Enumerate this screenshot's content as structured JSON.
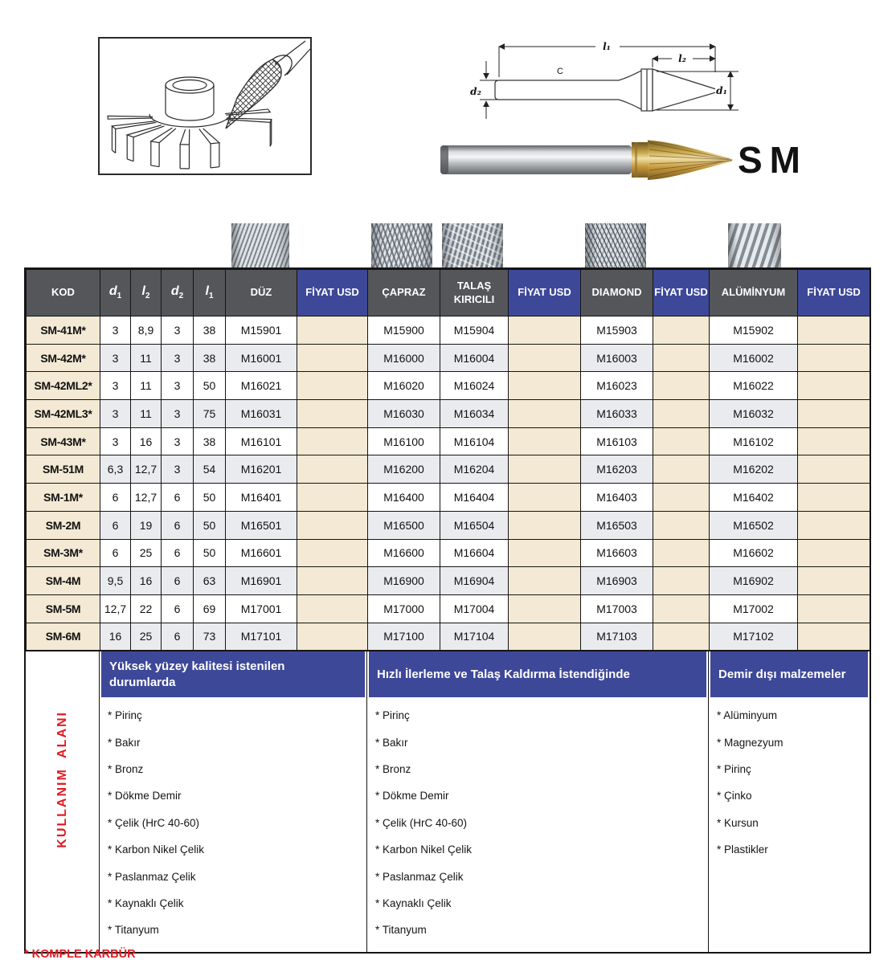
{
  "page": {
    "product_code_label": "SM",
    "footnote": "* KOMPLE KARBÜR",
    "colors": {
      "header_gray": "#54565a",
      "accent_blue": "#3e4899",
      "beige": "#f3e9d4",
      "alt_row_gray": "#e9ebee",
      "red": "#e01b24"
    }
  },
  "diagram": {
    "l1": "l₁",
    "l2": "l₂",
    "d1": "d₁",
    "d2": "d₂",
    "c": "C"
  },
  "table": {
    "headers": [
      {
        "label": "KOD"
      },
      {
        "label": "d",
        "sub": "1"
      },
      {
        "label": "l",
        "sub": "2"
      },
      {
        "label": "d",
        "sub": "2"
      },
      {
        "label": "l",
        "sub": "1"
      },
      {
        "label": "DÜZ"
      },
      {
        "label": "FİYAT USD",
        "price": true
      },
      {
        "label": "ÇAPRAZ"
      },
      {
        "label": "TALAŞ KIRICILI"
      },
      {
        "label": "FİYAT USD",
        "price": true
      },
      {
        "label": "DIAMOND"
      },
      {
        "label": "FİYAT USD",
        "price": true
      },
      {
        "label": "ALÜMİNYUM"
      },
      {
        "label": "FİYAT USD",
        "price": true
      }
    ],
    "rows": [
      {
        "kod": "SM-41M*",
        "d1": "3",
        "l2": "8,9",
        "d2": "3",
        "l1": "38",
        "duz": "M15901",
        "fiyat1": "",
        "capraz": "M15900",
        "talas": "M15904",
        "fiyat2": "",
        "diamond": "M15903",
        "fiyat3": "",
        "aluminyum": "M15902",
        "fiyat4": ""
      },
      {
        "kod": "SM-42M*",
        "d1": "3",
        "l2": "11",
        "d2": "3",
        "l1": "38",
        "duz": "M16001",
        "fiyat1": "",
        "capraz": "M16000",
        "talas": "M16004",
        "fiyat2": "",
        "diamond": "M16003",
        "fiyat3": "",
        "aluminyum": "M16002",
        "fiyat4": ""
      },
      {
        "kod": "SM-42ML2*",
        "d1": "3",
        "l2": "11",
        "d2": "3",
        "l1": "50",
        "duz": "M16021",
        "fiyat1": "",
        "capraz": "M16020",
        "talas": "M16024",
        "fiyat2": "",
        "diamond": "M16023",
        "fiyat3": "",
        "aluminyum": "M16022",
        "fiyat4": ""
      },
      {
        "kod": "SM-42ML3*",
        "d1": "3",
        "l2": "11",
        "d2": "3",
        "l1": "75",
        "duz": "M16031",
        "fiyat1": "",
        "capraz": "M16030",
        "talas": "M16034",
        "fiyat2": "",
        "diamond": "M16033",
        "fiyat3": "",
        "aluminyum": "M16032",
        "fiyat4": ""
      },
      {
        "kod": "SM-43M*",
        "d1": "3",
        "l2": "16",
        "d2": "3",
        "l1": "38",
        "duz": "M16101",
        "fiyat1": "",
        "capraz": "M16100",
        "talas": "M16104",
        "fiyat2": "",
        "diamond": "M16103",
        "fiyat3": "",
        "aluminyum": "M16102",
        "fiyat4": ""
      },
      {
        "kod": "SM-51M",
        "d1": "6,3",
        "l2": "12,7",
        "d2": "3",
        "l1": "54",
        "duz": "M16201",
        "fiyat1": "",
        "capraz": "M16200",
        "talas": "M16204",
        "fiyat2": "",
        "diamond": "M16203",
        "fiyat3": "",
        "aluminyum": "M16202",
        "fiyat4": ""
      },
      {
        "kod": "SM-1M*",
        "d1": "6",
        "l2": "12,7",
        "d2": "6",
        "l1": "50",
        "duz": "M16401",
        "fiyat1": "",
        "capraz": "M16400",
        "talas": "M16404",
        "fiyat2": "",
        "diamond": "M16403",
        "fiyat3": "",
        "aluminyum": "M16402",
        "fiyat4": ""
      },
      {
        "kod": "SM-2M",
        "d1": "6",
        "l2": "19",
        "d2": "6",
        "l1": "50",
        "duz": "M16501",
        "fiyat1": "",
        "capraz": "M16500",
        "talas": "M16504",
        "fiyat2": "",
        "diamond": "M16503",
        "fiyat3": "",
        "aluminyum": "M16502",
        "fiyat4": ""
      },
      {
        "kod": "SM-3M*",
        "d1": "6",
        "l2": "25",
        "d2": "6",
        "l1": "50",
        "duz": "M16601",
        "fiyat1": "",
        "capraz": "M16600",
        "talas": "M16604",
        "fiyat2": "",
        "diamond": "M16603",
        "fiyat3": "",
        "aluminyum": "M16602",
        "fiyat4": ""
      },
      {
        "kod": "SM-4M",
        "d1": "9,5",
        "l2": "16",
        "d2": "6",
        "l1": "63",
        "duz": "M16901",
        "fiyat1": "",
        "capraz": "M16900",
        "talas": "M16904",
        "fiyat2": "",
        "diamond": "M16903",
        "fiyat3": "",
        "aluminyum": "M16902",
        "fiyat4": ""
      },
      {
        "kod": "SM-5M",
        "d1": "12,7",
        "l2": "22",
        "d2": "6",
        "l1": "69",
        "duz": "M17001",
        "fiyat1": "",
        "capraz": "M17000",
        "talas": "M17004",
        "fiyat2": "",
        "diamond": "M17003",
        "fiyat3": "",
        "aluminyum": "M17002",
        "fiyat4": ""
      },
      {
        "kod": "SM-6M",
        "d1": "16",
        "l2": "25",
        "d2": "6",
        "l1": "73",
        "duz": "M17101",
        "fiyat1": "",
        "capraz": "M17100",
        "talas": "M17104",
        "fiyat2": "",
        "diamond": "M17103",
        "fiyat3": "",
        "aluminyum": "M17102",
        "fiyat4": ""
      }
    ]
  },
  "usage": {
    "side_label": "KULLANIM  ALANI",
    "bullet": "*",
    "sections": [
      {
        "title": "Yüksek yüzey kalitesi istenilen durumlarda",
        "items": [
          "Pirinç",
          "Bakır",
          "Bronz",
          "Dökme Demir",
          "Çelik (HrC 40-60)",
          "Karbon Nikel Çelik",
          "Paslanmaz Çelik",
          "Kaynaklı Çelik",
          "Titanyum"
        ]
      },
      {
        "title": "Hızlı İlerleme ve Talaş Kaldırma İstendiğinde",
        "items": [
          "Pirinç",
          "Bakır",
          "Bronz",
          "Dökme Demir",
          "Çelik (HrC 40-60)",
          "Karbon Nikel Çelik",
          "Paslanmaz Çelik",
          "Kaynaklı Çelik",
          "Titanyum"
        ]
      },
      {
        "title": "Demir dışı malzemeler",
        "items": [
          "Alüminyum",
          "Magnezyum",
          "Pirinç",
          "Çinko",
          "Kursun",
          "Plastikler"
        ]
      }
    ]
  }
}
